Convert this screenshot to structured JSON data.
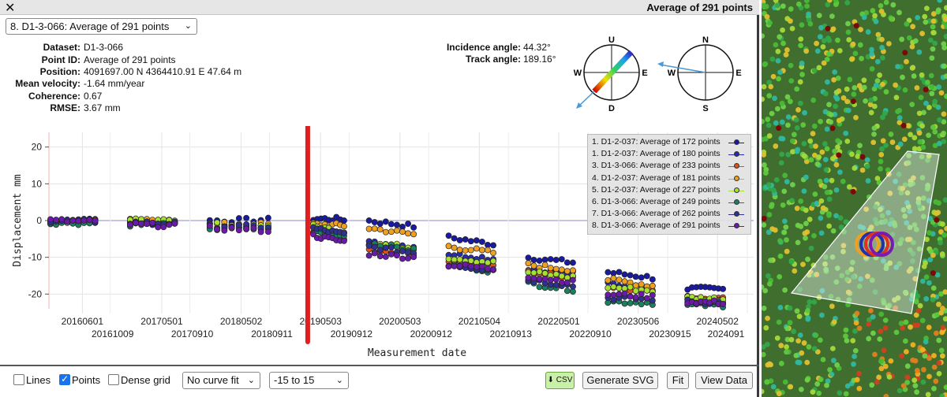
{
  "window": {
    "title": "Average of 291 points",
    "close_symbol": "✕"
  },
  "dataset_select": {
    "value": "8. D1-3-066: Average of 291 points"
  },
  "info": {
    "dataset_label": "Dataset:",
    "dataset_value": "D1-3-066",
    "point_label": "Point ID:",
    "point_value": "Average of 291 points",
    "position_label": "Position:",
    "position_value": "4091697.00 N 4364410.91 E 47.64 m",
    "velocity_label": "Mean velocity:",
    "velocity_value": "-1.64 mm/year",
    "coherence_label": "Coherence:",
    "coherence_value": "0.67",
    "rmse_label": "RMSE:",
    "rmse_value": "3.67 mm"
  },
  "angles": {
    "incidence_label": "Incidence angle:",
    "incidence_value": "44.32°",
    "track_label": "Track angle:",
    "track_value": "189.16°"
  },
  "compass": {
    "vertical": {
      "top": "U",
      "bottom": "D",
      "left": "W",
      "right": "E"
    },
    "horizontal": {
      "top": "N",
      "bottom": "S",
      "left": "W",
      "right": "E"
    }
  },
  "chart_data": {
    "type": "scatter",
    "xlabel": "Measurement date",
    "ylabel": "Displacement mm",
    "ylim": [
      -24,
      24
    ],
    "yticks": [
      20,
      10,
      0,
      -10,
      -20
    ],
    "xticks_upper": [
      "20160601",
      "20170501",
      "20180502",
      "20190503",
      "20200503",
      "20210504",
      "20220501",
      "20230506",
      "20240502"
    ],
    "xticks_lower": [
      "20161009",
      "20170910",
      "20180911",
      "20190912",
      "20200912",
      "20210913",
      "20220910",
      "20230915",
      "2024091"
    ],
    "xrange_years": [
      2016.0,
      2024.85
    ],
    "marker_date_year": 2019.25,
    "grid": true,
    "legend_position": "top-right",
    "series": [
      {
        "name": "1. D1-2-037: Average of 172 points",
        "color": "#1a1aa0",
        "segments": [
          [
            2016.0,
            0
          ],
          [
            2017.0,
            0
          ],
          [
            2018.0,
            0
          ],
          [
            2019.3,
            0.5
          ],
          [
            2020.0,
            0
          ],
          [
            2021.0,
            -4.5
          ],
          [
            2022.0,
            -10
          ],
          [
            2023.0,
            -14
          ],
          [
            2024.0,
            -18.5
          ],
          [
            2024.8,
            -19
          ]
        ]
      },
      {
        "name": "1. D1-2-037: Average of 180 points",
        "color": "#2a2ab0",
        "segments": [
          [
            2016.0,
            0
          ],
          [
            2017.0,
            -0.5
          ],
          [
            2018.0,
            -1.5
          ],
          [
            2019.3,
            -2
          ],
          [
            2020.0,
            -6
          ],
          [
            2021.0,
            -9
          ],
          [
            2022.0,
            -13
          ],
          [
            2023.0,
            -17
          ],
          [
            2024.0,
            -22
          ],
          [
            2024.8,
            -23
          ]
        ]
      },
      {
        "name": "3. D1-3-066: Average of 233 points",
        "color": "#e0501a",
        "segments": [
          [
            2016.0,
            -0.5
          ],
          [
            2017.0,
            -0.5
          ],
          [
            2018.0,
            -2
          ],
          [
            2019.3,
            -3
          ],
          [
            2020.0,
            -8
          ],
          [
            2021.0,
            -11
          ],
          [
            2022.0,
            -14
          ],
          [
            2023.0,
            -18
          ],
          [
            2024.0,
            -21
          ],
          [
            2024.8,
            -22
          ]
        ]
      },
      {
        "name": "4. D1-2-037: Average of 181 points",
        "color": "#f0a020",
        "segments": [
          [
            2016.0,
            0
          ],
          [
            2017.0,
            0
          ],
          [
            2018.0,
            -1
          ],
          [
            2019.3,
            -1
          ],
          [
            2020.0,
            -2
          ],
          [
            2021.0,
            -7
          ],
          [
            2022.0,
            -12
          ],
          [
            2023.0,
            -16
          ],
          [
            2024.0,
            -21
          ],
          [
            2024.8,
            -23
          ]
        ]
      },
      {
        "name": "5. D1-2-037: Average of 227 points",
        "color": "#a8e030",
        "segments": [
          [
            2016.0,
            0
          ],
          [
            2017.0,
            0
          ],
          [
            2018.0,
            -1
          ],
          [
            2019.3,
            -1.5
          ],
          [
            2020.0,
            -6
          ],
          [
            2021.0,
            -10
          ],
          [
            2022.0,
            -14
          ],
          [
            2023.0,
            -18
          ],
          [
            2024.0,
            -21
          ],
          [
            2024.8,
            -22
          ]
        ]
      },
      {
        "name": "6. D1-3-066: Average of 249 points",
        "color": "#1a8060",
        "segments": [
          [
            2016.0,
            -0.5
          ],
          [
            2017.0,
            -1
          ],
          [
            2018.0,
            -2
          ],
          [
            2019.3,
            -3
          ],
          [
            2020.0,
            -6
          ],
          [
            2021.0,
            -12
          ],
          [
            2022.0,
            -17
          ],
          [
            2023.0,
            -22
          ],
          [
            2024.0,
            -23
          ],
          [
            2024.8,
            -23
          ]
        ]
      },
      {
        "name": "7. D1-3-066: Average of 262 points",
        "color": "#303090",
        "segments": [
          [
            2016.0,
            0
          ],
          [
            2017.0,
            -0.5
          ],
          [
            2018.0,
            -1.5
          ],
          [
            2019.3,
            -2
          ],
          [
            2020.0,
            -7
          ],
          [
            2021.0,
            -12
          ],
          [
            2022.0,
            -16
          ],
          [
            2023.0,
            -21
          ],
          [
            2024.0,
            -22
          ],
          [
            2024.8,
            -23
          ]
        ]
      },
      {
        "name": "8. D1-3-066: Average of 291 points",
        "color": "#6a1aa8",
        "segments": [
          [
            2016.0,
            0
          ],
          [
            2017.0,
            -1
          ],
          [
            2018.0,
            -2
          ],
          [
            2019.3,
            -4
          ],
          [
            2020.0,
            -9
          ],
          [
            2021.0,
            -12
          ],
          [
            2022.0,
            -15
          ],
          [
            2023.0,
            -20
          ],
          [
            2024.0,
            -22
          ],
          [
            2024.8,
            -23
          ]
        ]
      }
    ]
  },
  "toolbar": {
    "lines_label": "Lines",
    "lines_checked": false,
    "points_label": "Points",
    "points_checked": true,
    "dense_label": "Dense grid",
    "dense_checked": false,
    "curve_fit_value": "No curve fit",
    "range_value": "-15 to 15",
    "csv_label": "⬇ CSV",
    "svg_label": "Generate SVG",
    "fit_label": "Fit",
    "view_label": "View Data"
  }
}
